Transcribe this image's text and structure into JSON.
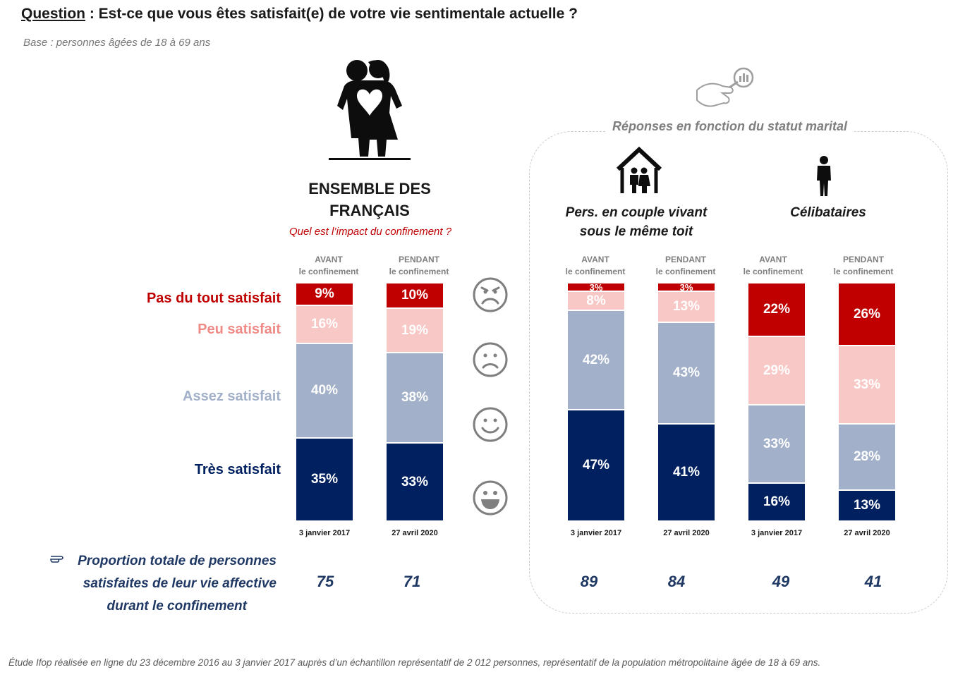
{
  "header": {
    "question_label": "Question",
    "question_text": " : Est-ce que vous êtes satisfait(e) de votre vie sentimentale actuelle ?",
    "base": "Base : personnes âgées de 18 à 69 ans"
  },
  "ensemble": {
    "title_line1": "ENSEMBLE DES",
    "title_line2": "FRANÇAIS",
    "subtitle": "Quel est l’impact du confinement ?"
  },
  "marital": {
    "label": "Réponses en fonction du statut marital",
    "couple_line1": "Pers. en couple vivant",
    "couple_line2": "sous le même toit",
    "single": "Célibataires"
  },
  "column_headers": [
    {
      "line1": "AVANT",
      "line2": "le confinement"
    },
    {
      "line1": "PENDANT",
      "line2": "le confinement"
    },
    {
      "line1": "AVANT",
      "line2": "le confinement"
    },
    {
      "line1": "PENDANT",
      "line2": "le confinement"
    },
    {
      "line1": "AVANT",
      "line2": "le confinement"
    },
    {
      "line1": "PENDANT",
      "line2": "le confinement"
    }
  ],
  "legend": {
    "pas": "Pas du tout satisfait",
    "peu": "Peu satisfait",
    "assez": "Assez satisfait",
    "tres": "Très satisfait"
  },
  "colors": {
    "pas": "#c00000",
    "peu": "#f8c8c6",
    "assez": "#a2b1c9",
    "tres": "#002060",
    "legend_pas": "#c00000",
    "legend_peu": "#f08a86",
    "legend_assez": "#a2b1c9",
    "legend_tres": "#002060"
  },
  "chart_data": {
    "type": "bar",
    "stacked": true,
    "categories": [
      "3 janvier 2017",
      "27 avril 2020",
      "3 janvier 2017",
      "27 avril 2020",
      "3 janvier 2017",
      "27 avril 2020"
    ],
    "series": [
      {
        "name": "Pas du tout satisfait",
        "values": [
          9,
          10,
          3,
          3,
          22,
          26
        ]
      },
      {
        "name": "Peu satisfait",
        "values": [
          16,
          19,
          8,
          13,
          29,
          33
        ]
      },
      {
        "name": "Assez satisfait",
        "values": [
          40,
          38,
          42,
          43,
          33,
          28
        ]
      },
      {
        "name": "Très satisfait",
        "values": [
          35,
          33,
          47,
          41,
          16,
          13
        ]
      }
    ],
    "value_suffix": "%"
  },
  "proportion": {
    "line1": "Proportion totale de personnes",
    "line2": "satisfaites de leur vie affective",
    "line3": "durant le confinement",
    "values": [
      "75",
      "71",
      "89",
      "84",
      "49",
      "41"
    ]
  },
  "footer": "Étude Ifop réalisée en ligne du 23 décembre 2016 au 3 janvier 2017 auprès d’un échantillon représentatif de 2 012 personnes, représentatif de la population métropolitaine âgée de 18 à 69 ans.",
  "icons": [
    "couple-silhouette-icon",
    "hand-magnifier-icon",
    "house-family-icon",
    "single-person-icon",
    "angry-face-icon",
    "sad-face-icon",
    "smiling-face-icon",
    "grinning-face-icon",
    "pointing-hand-icon"
  ]
}
